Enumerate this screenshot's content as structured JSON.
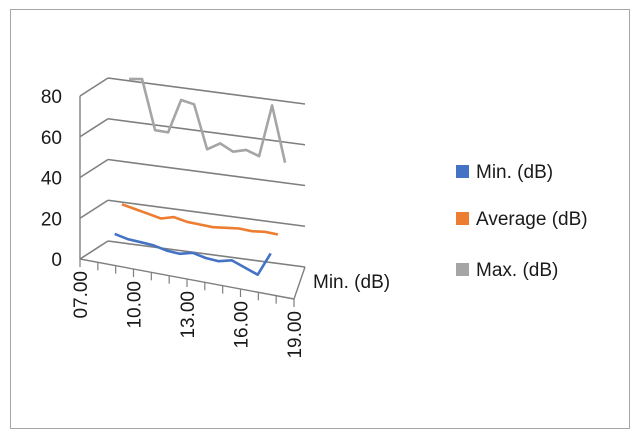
{
  "chart_data": {
    "type": "line",
    "view": "3d-line",
    "x": [
      "07.00",
      "08.00",
      "09.00",
      "10.00",
      "11.00",
      "12.00",
      "13.00",
      "14.00",
      "15.00",
      "16.00",
      "17.00",
      "18.00",
      "19.00"
    ],
    "x_tick_labels": [
      "07.00",
      "10.00",
      "13.00",
      "16.00",
      "19.00"
    ],
    "ylim": [
      0,
      80
    ],
    "y_ticks": [
      "0",
      "20",
      "40",
      "60",
      "80"
    ],
    "depth_axis_label": "Min. (dB)",
    "gridlines": true,
    "legend_position": "right",
    "series": [
      {
        "name": "Min. (dB)",
        "color": "#4472c4",
        "values": [
          11,
          10,
          10,
          10,
          9,
          9,
          11,
          10,
          10,
          12,
          10,
          8,
          20
        ]
      },
      {
        "name": "Average (dB)",
        "color": "#ed7d31",
        "values": [
          22,
          21,
          20,
          19,
          21,
          20,
          20,
          20,
          21,
          22,
          22,
          23,
          23
        ]
      },
      {
        "name": "Max. (dB)",
        "color": "#a5a5a5",
        "values": [
          80,
          81,
          57,
          57,
          74,
          73,
          52,
          56,
          53,
          55,
          53,
          79,
          52
        ]
      }
    ]
  }
}
